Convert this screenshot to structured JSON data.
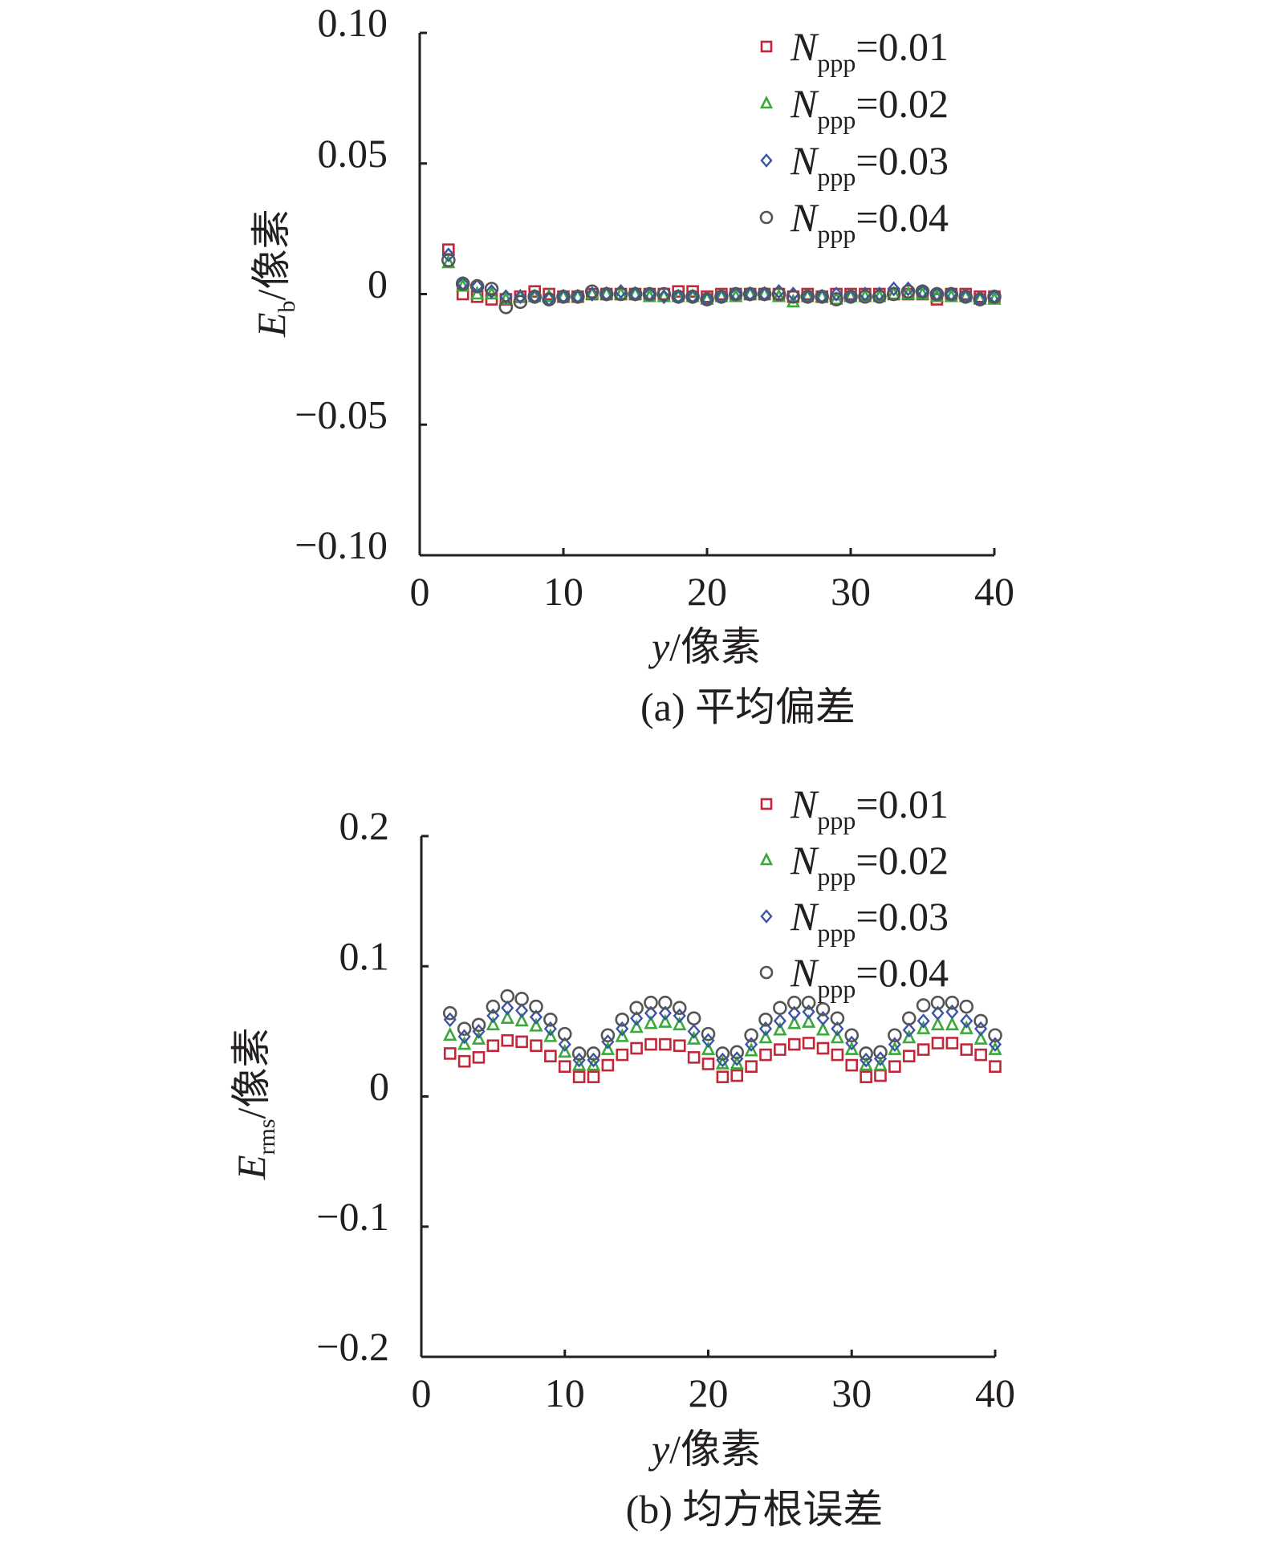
{
  "chart_data": [
    {
      "type": "scatter",
      "caption": "(a) 平均偏差",
      "ylabel_main": "E",
      "ylabel_sub": "b",
      "ylabel_unit": "/像素",
      "xlabel_var": "y",
      "xlabel_unit": "/像素",
      "xlim": [
        0,
        40
      ],
      "ylim": [
        -0.1,
        0.1
      ],
      "xticks": [
        0,
        10,
        20,
        30,
        40
      ],
      "xtick_labels": [
        "0",
        "10",
        "20",
        "30",
        "40"
      ],
      "yticks": [
        0.1,
        0.05,
        0,
        -0.05,
        -0.1
      ],
      "ytick_labels": [
        "0.10",
        "0.05",
        "0",
        "−0.05",
        "−0.10"
      ],
      "legend_position": "top-right",
      "x": [
        2,
        3,
        4,
        5,
        6,
        7,
        8,
        9,
        10,
        11,
        12,
        13,
        14,
        15,
        16,
        17,
        18,
        19,
        20,
        21,
        22,
        23,
        24,
        25,
        26,
        27,
        28,
        29,
        30,
        31,
        32,
        33,
        34,
        35,
        36,
        37,
        38,
        39,
        40
      ],
      "series": [
        {
          "name_main": "N",
          "name_sub": "ppp",
          "name_val": "=0.01",
          "marker": "square",
          "color": "#c0283a",
          "values": [
            0.017,
            0.0,
            -0.001,
            -0.002,
            -0.002,
            -0.001,
            0.001,
            0.0,
            -0.001,
            -0.001,
            0.0,
            0.0,
            0.0,
            0.0,
            0.0,
            0.0,
            0.001,
            0.001,
            -0.001,
            0.0,
            0.0,
            0.0,
            0.0,
            0.0,
            -0.001,
            0.0,
            -0.001,
            0.0,
            0.0,
            0.0,
            0.0,
            0.0,
            0.0,
            0.0,
            -0.002,
            0.0,
            0.0,
            -0.001,
            -0.001
          ]
        },
        {
          "name_main": "N",
          "name_sub": "ppp",
          "name_val": "=0.02",
          "marker": "triangle",
          "color": "#3aa83a",
          "values": [
            0.012,
            0.003,
            0.0,
            0.0,
            -0.002,
            -0.001,
            -0.001,
            -0.001,
            -0.001,
            -0.001,
            0.0,
            0.0,
            0.0,
            0.0,
            -0.001,
            -0.001,
            -0.001,
            -0.001,
            -0.002,
            -0.001,
            -0.001,
            0.0,
            0.0,
            -0.001,
            -0.003,
            -0.001,
            -0.001,
            -0.002,
            -0.001,
            -0.001,
            -0.001,
            0.0,
            0.0,
            0.0,
            -0.001,
            -0.001,
            -0.001,
            -0.002,
            -0.002
          ]
        },
        {
          "name_main": "N",
          "name_sub": "ppp",
          "name_val": "=0.03",
          "marker": "diamond",
          "color": "#3b55a5",
          "values": [
            0.015,
            0.004,
            0.003,
            0.001,
            -0.001,
            -0.001,
            -0.001,
            -0.002,
            -0.001,
            -0.001,
            0.0,
            0.0,
            0.001,
            0.0,
            0.0,
            -0.001,
            -0.001,
            -0.001,
            -0.002,
            -0.001,
            0.0,
            0.0,
            0.0,
            0.001,
            0.0,
            -0.001,
            -0.001,
            0.0,
            -0.001,
            0.0,
            0.0,
            0.002,
            0.002,
            0.001,
            0.0,
            0.0,
            -0.001,
            -0.002,
            -0.001
          ]
        },
        {
          "name_main": "N",
          "name_sub": "ppp",
          "name_val": "=0.04",
          "marker": "circle",
          "color": "#555555",
          "values": [
            0.013,
            0.004,
            0.003,
            0.002,
            -0.005,
            -0.003,
            -0.001,
            -0.002,
            -0.001,
            -0.001,
            0.001,
            0.0,
            0.0,
            0.0,
            0.0,
            0.0,
            -0.001,
            -0.001,
            -0.002,
            -0.001,
            0.0,
            0.0,
            0.0,
            0.0,
            -0.001,
            -0.001,
            -0.001,
            -0.002,
            -0.001,
            -0.001,
            -0.001,
            0.0,
            0.001,
            0.001,
            0.0,
            0.0,
            -0.001,
            -0.002,
            -0.001
          ]
        }
      ]
    },
    {
      "type": "scatter",
      "caption": "(b) 均方根误差",
      "ylabel_main": "E",
      "ylabel_sub": "rms",
      "ylabel_unit": "/像素",
      "xlabel_var": "y",
      "xlabel_unit": "/像素",
      "xlim": [
        0,
        40
      ],
      "ylim": [
        -0.2,
        0.2
      ],
      "xticks": [
        0,
        10,
        20,
        30,
        40
      ],
      "xtick_labels": [
        "0",
        "10",
        "20",
        "30",
        "40"
      ],
      "yticks": [
        0.2,
        0.1,
        0,
        -0.1,
        -0.2
      ],
      "ytick_labels": [
        "0.2",
        "0.1",
        "0",
        "−0.1",
        "−0.2"
      ],
      "legend_position": "top-right",
      "x": [
        2,
        3,
        4,
        5,
        6,
        7,
        8,
        9,
        10,
        11,
        12,
        13,
        14,
        15,
        16,
        17,
        18,
        19,
        20,
        21,
        22,
        23,
        24,
        25,
        26,
        27,
        28,
        29,
        30,
        31,
        32,
        33,
        34,
        35,
        36,
        37,
        38,
        39,
        40
      ],
      "series": [
        {
          "name_main": "N",
          "name_sub": "ppp",
          "name_val": "=0.01",
          "marker": "square",
          "color": "#c0283a",
          "values": [
            0.033,
            0.027,
            0.03,
            0.039,
            0.043,
            0.042,
            0.039,
            0.031,
            0.023,
            0.015,
            0.015,
            0.024,
            0.032,
            0.037,
            0.04,
            0.04,
            0.039,
            0.03,
            0.025,
            0.015,
            0.016,
            0.023,
            0.032,
            0.036,
            0.04,
            0.041,
            0.037,
            0.032,
            0.024,
            0.015,
            0.016,
            0.023,
            0.031,
            0.036,
            0.041,
            0.041,
            0.036,
            0.032,
            0.023
          ]
        },
        {
          "name_main": "N",
          "name_sub": "ppp",
          "name_val": "=0.02",
          "marker": "triangle",
          "color": "#3aa83a",
          "values": [
            0.047,
            0.04,
            0.044,
            0.055,
            0.06,
            0.058,
            0.054,
            0.046,
            0.034,
            0.024,
            0.024,
            0.036,
            0.046,
            0.053,
            0.056,
            0.057,
            0.055,
            0.044,
            0.036,
            0.025,
            0.025,
            0.035,
            0.045,
            0.051,
            0.056,
            0.057,
            0.051,
            0.045,
            0.036,
            0.024,
            0.024,
            0.036,
            0.045,
            0.052,
            0.055,
            0.055,
            0.052,
            0.044,
            0.036
          ]
        },
        {
          "name_main": "N",
          "name_sub": "ppp",
          "name_val": "=0.03",
          "marker": "diamond",
          "color": "#3b55a5",
          "values": [
            0.059,
            0.046,
            0.05,
            0.062,
            0.068,
            0.066,
            0.061,
            0.052,
            0.04,
            0.028,
            0.028,
            0.042,
            0.052,
            0.06,
            0.064,
            0.064,
            0.062,
            0.05,
            0.043,
            0.028,
            0.029,
            0.04,
            0.052,
            0.058,
            0.064,
            0.065,
            0.06,
            0.052,
            0.041,
            0.028,
            0.029,
            0.04,
            0.051,
            0.058,
            0.064,
            0.065,
            0.058,
            0.052,
            0.04
          ]
        },
        {
          "name_main": "N",
          "name_sub": "ppp",
          "name_val": "=0.04",
          "marker": "circle",
          "color": "#555555",
          "values": [
            0.064,
            0.052,
            0.055,
            0.069,
            0.077,
            0.075,
            0.069,
            0.059,
            0.048,
            0.033,
            0.033,
            0.047,
            0.059,
            0.068,
            0.072,
            0.072,
            0.068,
            0.06,
            0.048,
            0.033,
            0.034,
            0.047,
            0.059,
            0.068,
            0.072,
            0.072,
            0.067,
            0.06,
            0.047,
            0.033,
            0.034,
            0.047,
            0.06,
            0.07,
            0.072,
            0.072,
            0.069,
            0.058,
            0.047
          ]
        }
      ]
    }
  ]
}
